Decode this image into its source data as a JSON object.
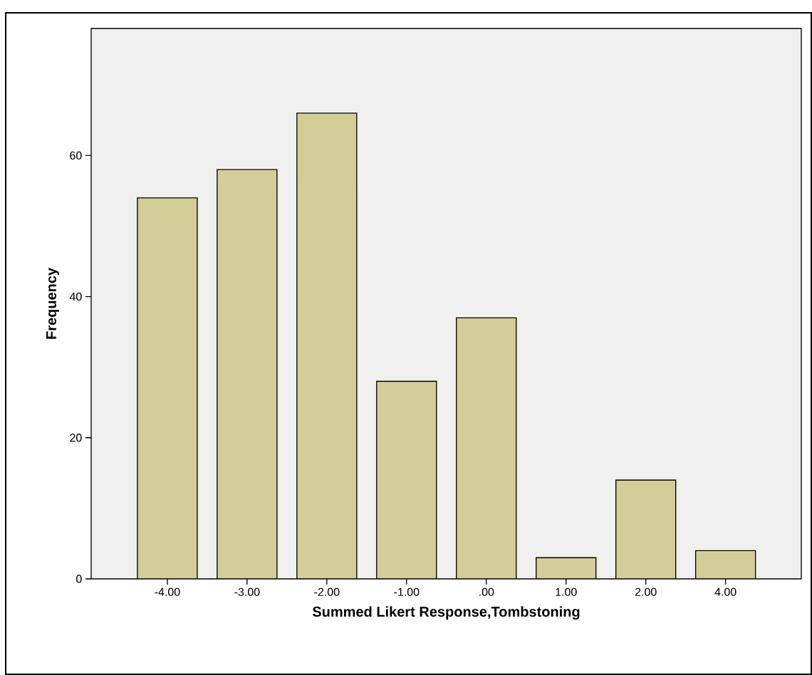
{
  "chart_data": {
    "type": "bar",
    "xlabel": "Summed Likert Response,Tombstoning",
    "ylabel": "Frequency",
    "categories": [
      "-4.00",
      "-3.00",
      "-2.00",
      "-1.00",
      ".00",
      "1.00",
      "2.00",
      "4.00"
    ],
    "values": [
      54,
      58,
      66,
      28,
      37,
      3,
      14,
      4
    ],
    "color": "#d3ce97",
    "ylim": [
      0,
      78
    ],
    "yticks": [
      0,
      20,
      40,
      60
    ]
  }
}
